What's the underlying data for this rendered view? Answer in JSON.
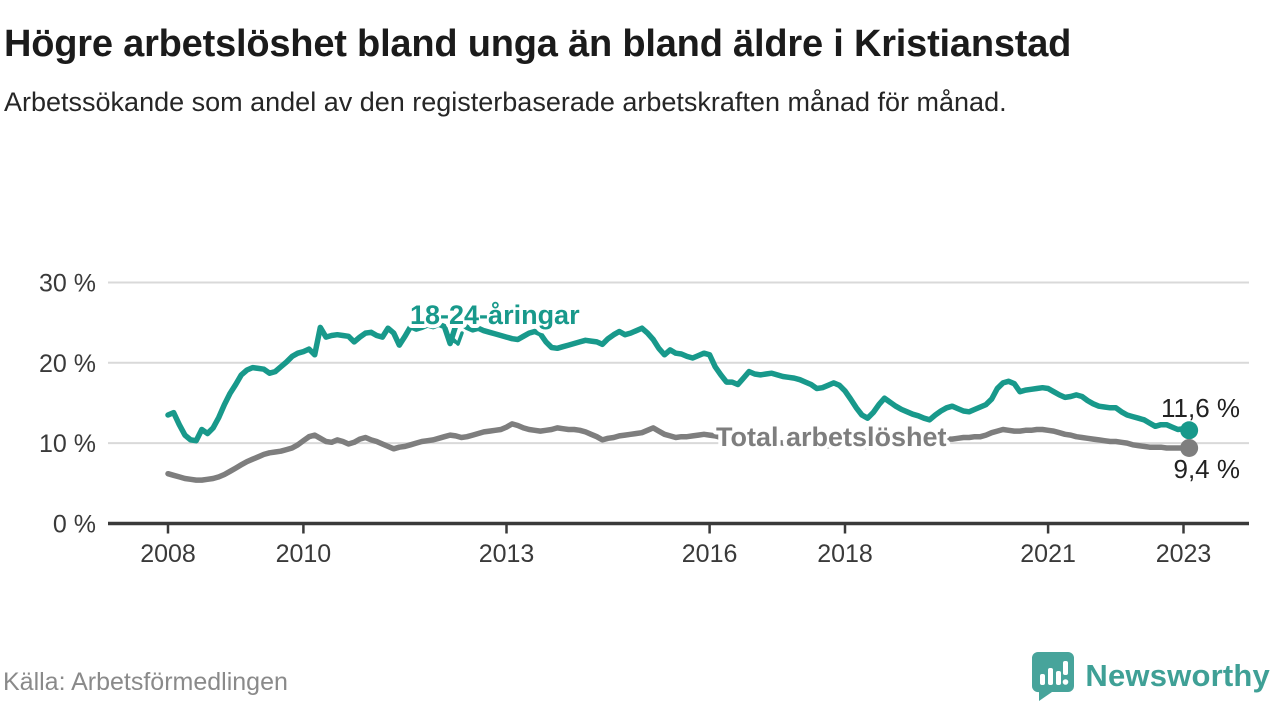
{
  "header": {
    "title": "Högre arbetslöshet bland unga än bland äldre i Kristianstad",
    "subtitle": "Arbetssökande som andel av den registerbaserade arbetskraften månad för månad."
  },
  "footer": {
    "source": "Källa: Arbetsförmedlingen",
    "brand": "Newsworthy",
    "brand_icon": "newsworthy-speech-bubble-bar-chart-icon",
    "brand_color": "#3fa096"
  },
  "chart_data": {
    "type": "line",
    "title": "Högre arbetslöshet bland unga än bland äldre i Kristianstad",
    "subtitle": "Arbetssökande som andel av den registerbaserade arbetskraften månad för månad.",
    "grid": "horizontal",
    "legend_position": "inline-labels",
    "ylim": [
      0,
      30
    ],
    "x_range": [
      2008,
      2023.1
    ],
    "y_ticks": [
      {
        "value": 0,
        "label": "0 %"
      },
      {
        "value": 10,
        "label": "10 %"
      },
      {
        "value": 20,
        "label": "20 %"
      },
      {
        "value": 30,
        "label": "30 %"
      }
    ],
    "x_ticks": [
      {
        "value": 2008,
        "label": "2008"
      },
      {
        "value": 2010,
        "label": "2010"
      },
      {
        "value": 2013,
        "label": "2013"
      },
      {
        "value": 2016,
        "label": "2016"
      },
      {
        "value": 2018,
        "label": "2018"
      },
      {
        "value": 2021,
        "label": "2021"
      },
      {
        "value": 2023,
        "label": "2023"
      }
    ],
    "series": [
      {
        "name": "18-24-åringar",
        "color": "#18998b",
        "end_label": "11,6 %",
        "end_value": 11.6,
        "start_year": 2008,
        "frequency": "monthly",
        "values": [
          13.5,
          13.8,
          12.3,
          11.0,
          10.4,
          10.3,
          11.7,
          11.2,
          11.9,
          13.2,
          14.8,
          16.2,
          17.3,
          18.5,
          19.1,
          19.4,
          19.3,
          19.2,
          18.7,
          18.9,
          19.5,
          20.1,
          20.8,
          21.2,
          21.4,
          21.7,
          21.0,
          24.4,
          23.2,
          23.4,
          23.5,
          23.4,
          23.3,
          22.6,
          23.2,
          23.7,
          23.8,
          23.4,
          23.2,
          24.3,
          23.7,
          22.2,
          23.3,
          24.5,
          24.2,
          24.4,
          24.7,
          24.5,
          24.8,
          24.5,
          22.4,
          24.6,
          24.9,
          24.4,
          24.1,
          24.3,
          24.0,
          23.8,
          23.6,
          23.4,
          23.2,
          23.0,
          22.9,
          23.3,
          23.7,
          23.9,
          23.6,
          22.6,
          21.9,
          21.8,
          22.0,
          22.2,
          22.4,
          22.6,
          22.8,
          22.7,
          22.6,
          22.3,
          23.0,
          23.5,
          23.9,
          23.5,
          23.7,
          24.0,
          24.3,
          23.7,
          22.9,
          21.8,
          21.0,
          21.6,
          21.2,
          21.1,
          20.8,
          20.6,
          20.9,
          21.2,
          21.0,
          19.5,
          18.5,
          17.6,
          17.6,
          17.3,
          18.1,
          18.9,
          18.6,
          18.5,
          18.6,
          18.7,
          18.5,
          18.3,
          18.2,
          18.1,
          17.9,
          17.6,
          17.3,
          16.8,
          16.9,
          17.2,
          17.5,
          17.2,
          16.5,
          15.5,
          14.4,
          13.5,
          13.1,
          13.8,
          14.8,
          15.6,
          15.1,
          14.6,
          14.2,
          13.9,
          13.6,
          13.4,
          13.1,
          12.9,
          13.5,
          14.0,
          14.4,
          14.6,
          14.3,
          14.0,
          13.9,
          14.2,
          14.5,
          14.8,
          15.5,
          16.8,
          17.5,
          17.7,
          17.4,
          16.4,
          16.6,
          16.7,
          16.8,
          16.9,
          16.8,
          16.4,
          16.0,
          15.7,
          15.8,
          16.0,
          15.8,
          15.3,
          14.9,
          14.6,
          14.5,
          14.4,
          14.4,
          13.9,
          13.5,
          13.3,
          13.1,
          12.9,
          12.5,
          12.1,
          12.3,
          12.3,
          12.0,
          11.7,
          11.8,
          11.6
        ]
      },
      {
        "name": "Total arbetslöshet",
        "color": "#7e7e7e",
        "end_label": "9,4 %",
        "end_value": 9.4,
        "start_year": 2008,
        "frequency": "monthly",
        "values": [
          6.2,
          6.0,
          5.8,
          5.6,
          5.5,
          5.4,
          5.4,
          5.5,
          5.6,
          5.8,
          6.1,
          6.5,
          6.9,
          7.3,
          7.7,
          8.0,
          8.3,
          8.6,
          8.8,
          8.9,
          9.0,
          9.2,
          9.4,
          9.8,
          10.3,
          10.8,
          11.0,
          10.6,
          10.2,
          10.1,
          10.4,
          10.2,
          9.9,
          10.1,
          10.5,
          10.7,
          10.4,
          10.2,
          9.9,
          9.6,
          9.3,
          9.5,
          9.6,
          9.8,
          10.0,
          10.2,
          10.3,
          10.4,
          10.6,
          10.8,
          11.0,
          10.9,
          10.7,
          10.8,
          11.0,
          11.2,
          11.4,
          11.5,
          11.6,
          11.7,
          12.0,
          12.4,
          12.2,
          11.9,
          11.7,
          11.6,
          11.5,
          11.6,
          11.7,
          11.9,
          11.8,
          11.7,
          11.7,
          11.6,
          11.4,
          11.1,
          10.8,
          10.4,
          10.6,
          10.7,
          10.9,
          11.0,
          11.1,
          11.2,
          11.3,
          11.6,
          11.9,
          11.5,
          11.1,
          10.9,
          10.7,
          10.8,
          10.8,
          10.9,
          11.0,
          11.1,
          11.0,
          10.9,
          10.7,
          10.6,
          10.5,
          10.4,
          10.3,
          10.3,
          10.2,
          10.2,
          10.1,
          10.1,
          10.1,
          10.0,
          10.0,
          9.9,
          9.9,
          9.8,
          9.8,
          9.8,
          9.7,
          9.7,
          9.7,
          9.8,
          9.8,
          9.7,
          9.7,
          9.6,
          9.6,
          9.7,
          9.7,
          9.8,
          9.8,
          9.9,
          9.9,
          10.0,
          10.0,
          10.1,
          10.1,
          10.2,
          10.3,
          10.4,
          10.5,
          10.5,
          10.6,
          10.7,
          10.7,
          10.8,
          10.8,
          11.0,
          11.3,
          11.5,
          11.7,
          11.6,
          11.5,
          11.5,
          11.6,
          11.6,
          11.7,
          11.7,
          11.6,
          11.5,
          11.3,
          11.1,
          11.0,
          10.8,
          10.7,
          10.6,
          10.5,
          10.4,
          10.3,
          10.2,
          10.2,
          10.1,
          10.0,
          9.8,
          9.7,
          9.6,
          9.5,
          9.5,
          9.5,
          9.4,
          9.4,
          9.4,
          9.4,
          9.4
        ]
      }
    ]
  }
}
